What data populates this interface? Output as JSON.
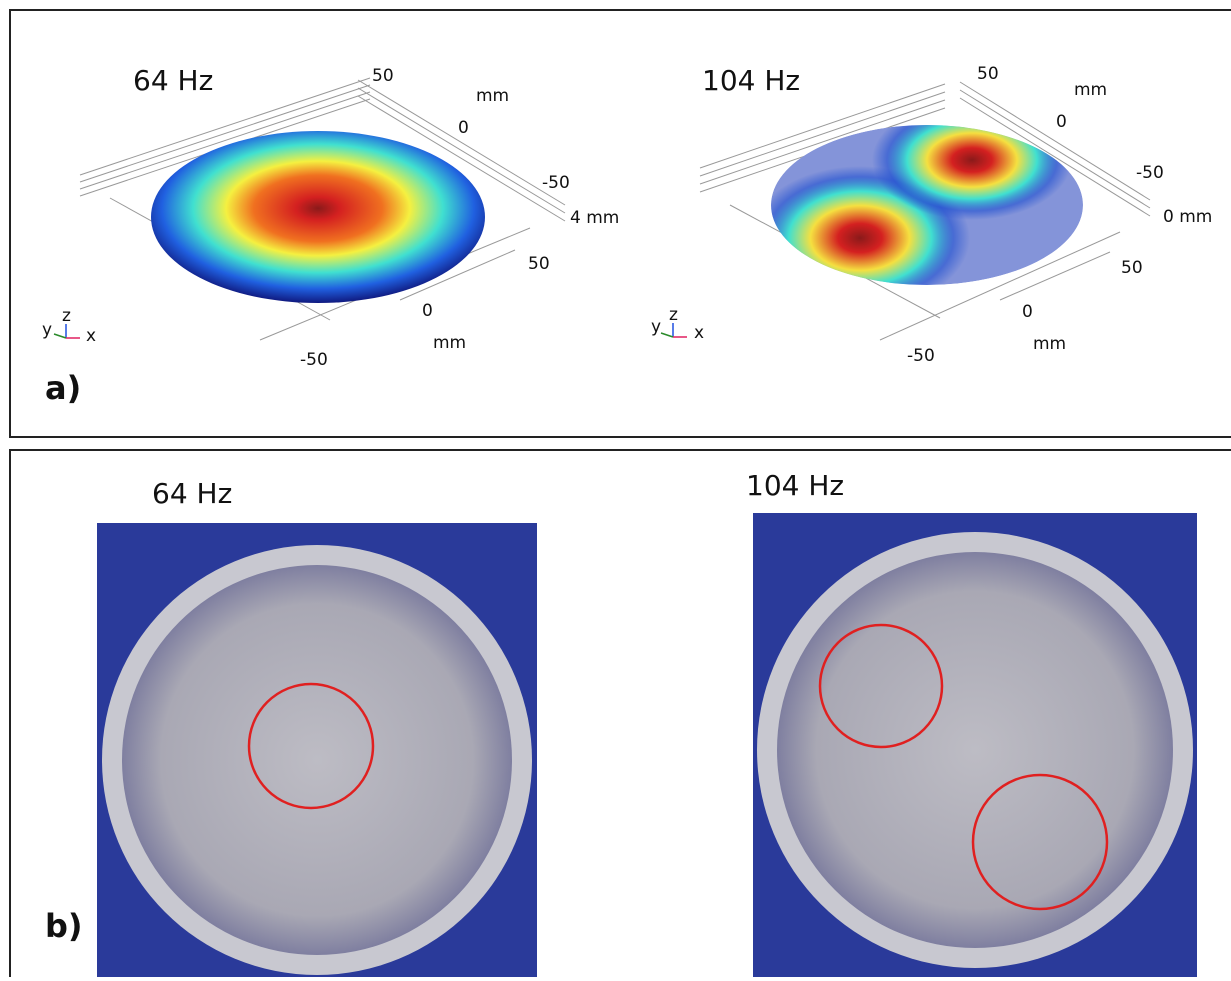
{
  "panel_a": {
    "label": "a)",
    "plots": [
      {
        "title": "64 Hz",
        "axis_texts": [
          "50",
          "mm",
          "0",
          "-50",
          "4 mm",
          "50",
          "0",
          "mm",
          "-50"
        ],
        "triad": [
          "y",
          "z",
          "x"
        ]
      },
      {
        "title": "104 Hz",
        "axis_texts": [
          "50",
          "mm",
          "0",
          "-50",
          "0 mm",
          "50",
          "0",
          "mm",
          "-50"
        ],
        "triad": [
          "y",
          "z",
          "x"
        ]
      }
    ]
  },
  "panel_b": {
    "label": "b)",
    "photos": [
      {
        "title": "64 Hz"
      },
      {
        "title": "104 Hz"
      }
    ]
  }
}
